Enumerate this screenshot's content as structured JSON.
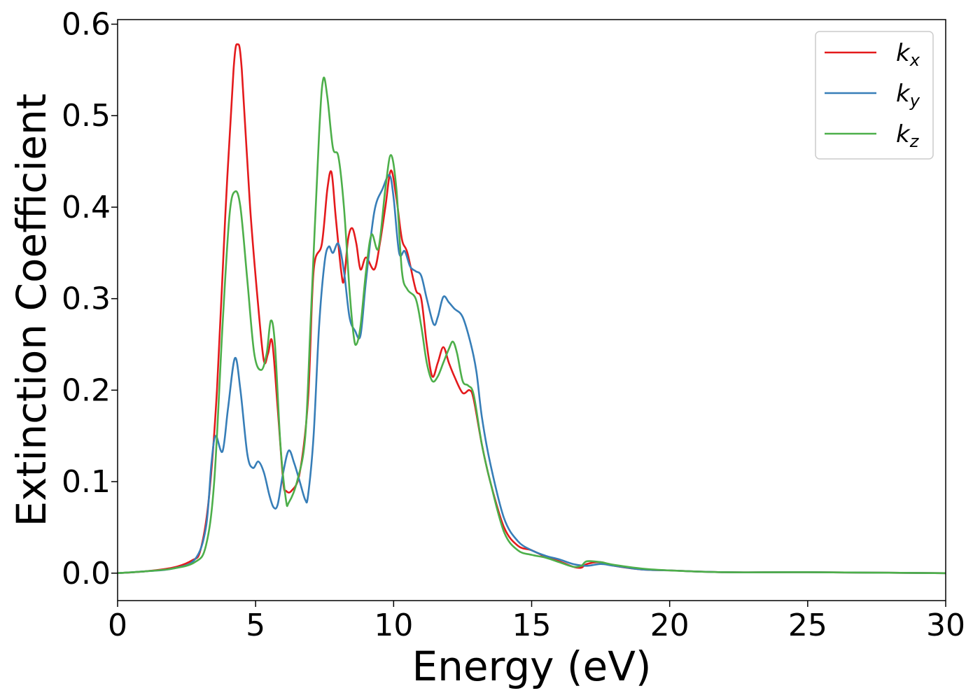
{
  "chart_data": {
    "type": "line",
    "xlabel": "Energy (eV)",
    "ylabel": "Extinction Coefficient",
    "xlim": [
      0,
      30
    ],
    "ylim": [
      -0.03,
      0.605
    ],
    "xticks": [
      "0",
      "5",
      "10",
      "15",
      "20",
      "25",
      "30"
    ],
    "yticks": [
      "0.0",
      "0.1",
      "0.2",
      "0.3",
      "0.4",
      "0.5",
      "0.6"
    ],
    "grid": false,
    "legend_position": "top-right",
    "series": [
      {
        "name": "k",
        "sub": "x",
        "color": "#e41a1c",
        "points": [
          [
            0,
            0
          ],
          [
            1,
            0.002
          ],
          [
            2,
            0.006
          ],
          [
            2.7,
            0.014
          ],
          [
            3.0,
            0.025
          ],
          [
            3.3,
            0.08
          ],
          [
            3.6,
            0.2
          ],
          [
            3.9,
            0.39
          ],
          [
            4.2,
            0.55
          ],
          [
            4.35,
            0.578
          ],
          [
            4.5,
            0.55
          ],
          [
            4.8,
            0.4
          ],
          [
            5.1,
            0.29
          ],
          [
            5.3,
            0.232
          ],
          [
            5.45,
            0.24
          ],
          [
            5.6,
            0.253
          ],
          [
            5.8,
            0.18
          ],
          [
            6.0,
            0.1
          ],
          [
            6.1,
            0.09
          ],
          [
            6.3,
            0.09
          ],
          [
            6.6,
            0.11
          ],
          [
            6.9,
            0.19
          ],
          [
            7.1,
            0.33
          ],
          [
            7.4,
            0.36
          ],
          [
            7.6,
            0.42
          ],
          [
            7.75,
            0.438
          ],
          [
            7.9,
            0.39
          ],
          [
            8.1,
            0.33
          ],
          [
            8.2,
            0.32
          ],
          [
            8.35,
            0.365
          ],
          [
            8.5,
            0.377
          ],
          [
            8.65,
            0.36
          ],
          [
            8.8,
            0.332
          ],
          [
            9.0,
            0.345
          ],
          [
            9.3,
            0.332
          ],
          [
            9.5,
            0.36
          ],
          [
            9.7,
            0.4
          ],
          [
            9.9,
            0.44
          ],
          [
            10.1,
            0.41
          ],
          [
            10.3,
            0.365
          ],
          [
            10.5,
            0.35
          ],
          [
            10.8,
            0.31
          ],
          [
            11.0,
            0.3
          ],
          [
            11.2,
            0.25
          ],
          [
            11.4,
            0.215
          ],
          [
            11.6,
            0.23
          ],
          [
            11.8,
            0.247
          ],
          [
            12.0,
            0.23
          ],
          [
            12.2,
            0.215
          ],
          [
            12.5,
            0.197
          ],
          [
            12.75,
            0.2
          ],
          [
            12.9,
            0.19
          ],
          [
            13.2,
            0.14
          ],
          [
            13.5,
            0.1
          ],
          [
            14.0,
            0.05
          ],
          [
            14.5,
            0.03
          ],
          [
            15.0,
            0.025
          ],
          [
            15.5,
            0.018
          ],
          [
            16.0,
            0.013
          ],
          [
            16.5,
            0.007
          ],
          [
            16.8,
            0.006
          ],
          [
            17.0,
            0.01
          ],
          [
            17.5,
            0.012
          ],
          [
            18.0,
            0.008
          ],
          [
            19.0,
            0.004
          ],
          [
            20.0,
            0.003
          ],
          [
            22,
            0.001
          ],
          [
            25,
            0.001
          ],
          [
            30,
            0.0
          ]
        ]
      },
      {
        "name": "k",
        "sub": "y",
        "color": "#377eb8",
        "points": [
          [
            0,
            0
          ],
          [
            1,
            0.002
          ],
          [
            2,
            0.005
          ],
          [
            2.8,
            0.015
          ],
          [
            3.2,
            0.05
          ],
          [
            3.4,
            0.12
          ],
          [
            3.55,
            0.15
          ],
          [
            3.8,
            0.133
          ],
          [
            4.0,
            0.18
          ],
          [
            4.25,
            0.235
          ],
          [
            4.45,
            0.2
          ],
          [
            4.7,
            0.13
          ],
          [
            4.9,
            0.115
          ],
          [
            5.1,
            0.122
          ],
          [
            5.3,
            0.11
          ],
          [
            5.5,
            0.085
          ],
          [
            5.65,
            0.072
          ],
          [
            5.8,
            0.075
          ],
          [
            6.0,
            0.11
          ],
          [
            6.2,
            0.134
          ],
          [
            6.4,
            0.12
          ],
          [
            6.6,
            0.1
          ],
          [
            6.8,
            0.08
          ],
          [
            6.9,
            0.085
          ],
          [
            7.1,
            0.15
          ],
          [
            7.3,
            0.27
          ],
          [
            7.5,
            0.34
          ],
          [
            7.65,
            0.357
          ],
          [
            7.8,
            0.35
          ],
          [
            8.0,
            0.36
          ],
          [
            8.2,
            0.33
          ],
          [
            8.4,
            0.28
          ],
          [
            8.6,
            0.265
          ],
          [
            8.8,
            0.26
          ],
          [
            9.0,
            0.32
          ],
          [
            9.3,
            0.395
          ],
          [
            9.6,
            0.42
          ],
          [
            9.85,
            0.435
          ],
          [
            10.0,
            0.41
          ],
          [
            10.2,
            0.35
          ],
          [
            10.4,
            0.352
          ],
          [
            10.6,
            0.335
          ],
          [
            10.8,
            0.33
          ],
          [
            11.0,
            0.325
          ],
          [
            11.2,
            0.3
          ],
          [
            11.45,
            0.272
          ],
          [
            11.6,
            0.28
          ],
          [
            11.8,
            0.302
          ],
          [
            12.0,
            0.296
          ],
          [
            12.2,
            0.289
          ],
          [
            12.5,
            0.28
          ],
          [
            12.8,
            0.25
          ],
          [
            13.0,
            0.22
          ],
          [
            13.2,
            0.17
          ],
          [
            13.5,
            0.12
          ],
          [
            14.0,
            0.06
          ],
          [
            14.5,
            0.035
          ],
          [
            15.0,
            0.025
          ],
          [
            15.5,
            0.019
          ],
          [
            16.0,
            0.015
          ],
          [
            16.5,
            0.01
          ],
          [
            17.0,
            0.008
          ],
          [
            17.5,
            0.01
          ],
          [
            18.0,
            0.008
          ],
          [
            19.0,
            0.004
          ],
          [
            20.0,
            0.003
          ],
          [
            22,
            0.001
          ],
          [
            25,
            0.001
          ],
          [
            30,
            0.0
          ]
        ]
      },
      {
        "name": "k",
        "sub": "z",
        "color": "#4daf4a",
        "points": [
          [
            0,
            0
          ],
          [
            1,
            0.002
          ],
          [
            2,
            0.005
          ],
          [
            2.8,
            0.012
          ],
          [
            3.2,
            0.03
          ],
          [
            3.5,
            0.1
          ],
          [
            3.8,
            0.27
          ],
          [
            4.05,
            0.39
          ],
          [
            4.25,
            0.417
          ],
          [
            4.45,
            0.4
          ],
          [
            4.7,
            0.32
          ],
          [
            4.95,
            0.24
          ],
          [
            5.2,
            0.222
          ],
          [
            5.4,
            0.24
          ],
          [
            5.55,
            0.276
          ],
          [
            5.7,
            0.25
          ],
          [
            5.9,
            0.14
          ],
          [
            6.1,
            0.08
          ],
          [
            6.2,
            0.077
          ],
          [
            6.5,
            0.1
          ],
          [
            6.8,
            0.15
          ],
          [
            7.0,
            0.28
          ],
          [
            7.3,
            0.48
          ],
          [
            7.45,
            0.54
          ],
          [
            7.6,
            0.52
          ],
          [
            7.8,
            0.465
          ],
          [
            8.0,
            0.455
          ],
          [
            8.2,
            0.4
          ],
          [
            8.4,
            0.31
          ],
          [
            8.55,
            0.26
          ],
          [
            8.65,
            0.25
          ],
          [
            8.8,
            0.27
          ],
          [
            9.0,
            0.33
          ],
          [
            9.2,
            0.37
          ],
          [
            9.45,
            0.355
          ],
          [
            9.7,
            0.42
          ],
          [
            9.9,
            0.457
          ],
          [
            10.1,
            0.42
          ],
          [
            10.3,
            0.33
          ],
          [
            10.5,
            0.31
          ],
          [
            10.8,
            0.3
          ],
          [
            11.0,
            0.27
          ],
          [
            11.2,
            0.23
          ],
          [
            11.4,
            0.21
          ],
          [
            11.6,
            0.215
          ],
          [
            11.8,
            0.23
          ],
          [
            12.0,
            0.245
          ],
          [
            12.15,
            0.253
          ],
          [
            12.3,
            0.24
          ],
          [
            12.5,
            0.21
          ],
          [
            12.7,
            0.205
          ],
          [
            12.9,
            0.195
          ],
          [
            13.2,
            0.14
          ],
          [
            13.5,
            0.1
          ],
          [
            14.0,
            0.045
          ],
          [
            14.5,
            0.025
          ],
          [
            15.0,
            0.02
          ],
          [
            15.5,
            0.017
          ],
          [
            16.0,
            0.012
          ],
          [
            16.5,
            0.007
          ],
          [
            16.8,
            0.008
          ],
          [
            17.0,
            0.013
          ],
          [
            17.5,
            0.012
          ],
          [
            18.0,
            0.009
          ],
          [
            19.0,
            0.005
          ],
          [
            20.0,
            0.003
          ],
          [
            22,
            0.001
          ],
          [
            25,
            0.001
          ],
          [
            30,
            0.0
          ]
        ]
      }
    ]
  }
}
